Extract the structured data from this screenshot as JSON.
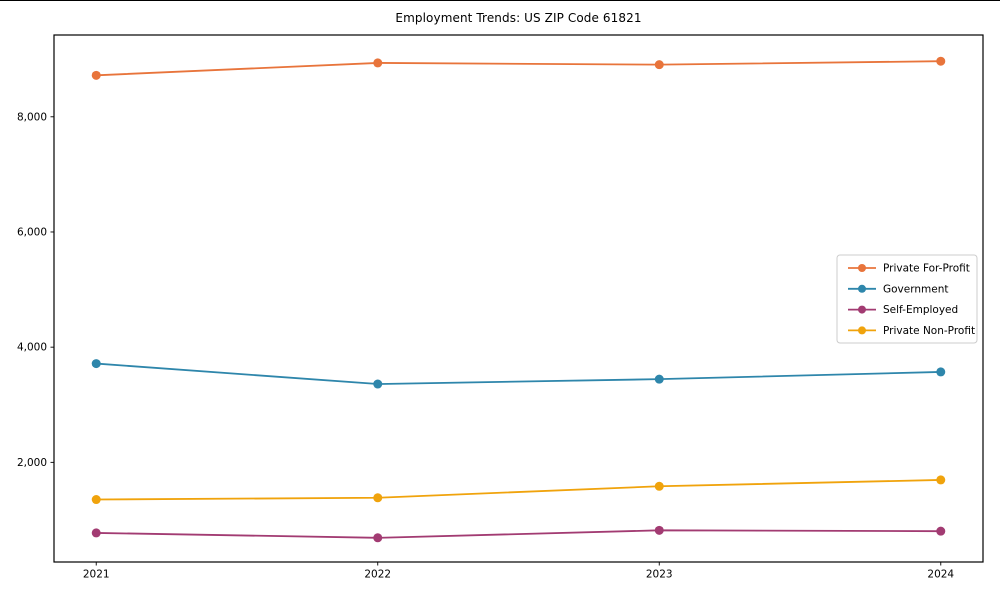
{
  "chart_data": {
    "type": "line",
    "title": "Employment Trends: US ZIP Code 61821",
    "xlabel": "",
    "ylabel": "",
    "x_labels": [
      "2021",
      "2022",
      "2023",
      "2024"
    ],
    "x_numeric": [
      2021,
      2022,
      2023,
      2024
    ],
    "series": [
      {
        "name": "Private For-Profit",
        "color": "#E8743B",
        "values": [
          8720,
          8935,
          8905,
          8965
        ]
      },
      {
        "name": "Government",
        "color": "#2E86AB",
        "values": [
          3715,
          3360,
          3445,
          3570
        ]
      },
      {
        "name": "Self-Employed",
        "color": "#A23B72",
        "values": [
          775,
          690,
          820,
          805
        ]
      },
      {
        "name": "Private Non-Profit",
        "color": "#F0A30C",
        "values": [
          1355,
          1385,
          1585,
          1695
        ]
      }
    ],
    "yticks": [
      {
        "value": 2000,
        "label": "2,000"
      },
      {
        "value": 4000,
        "label": "4,000"
      },
      {
        "value": 6000,
        "label": "6,000"
      },
      {
        "value": 8000,
        "label": "8,000"
      }
    ],
    "ylim": [
      270,
      9420
    ],
    "xlim": [
      2020.85,
      2024.15
    ],
    "grid": false,
    "legend": {
      "position": "right-center"
    },
    "axis_color": "#000000",
    "legend_border_color": "#cccccc"
  }
}
